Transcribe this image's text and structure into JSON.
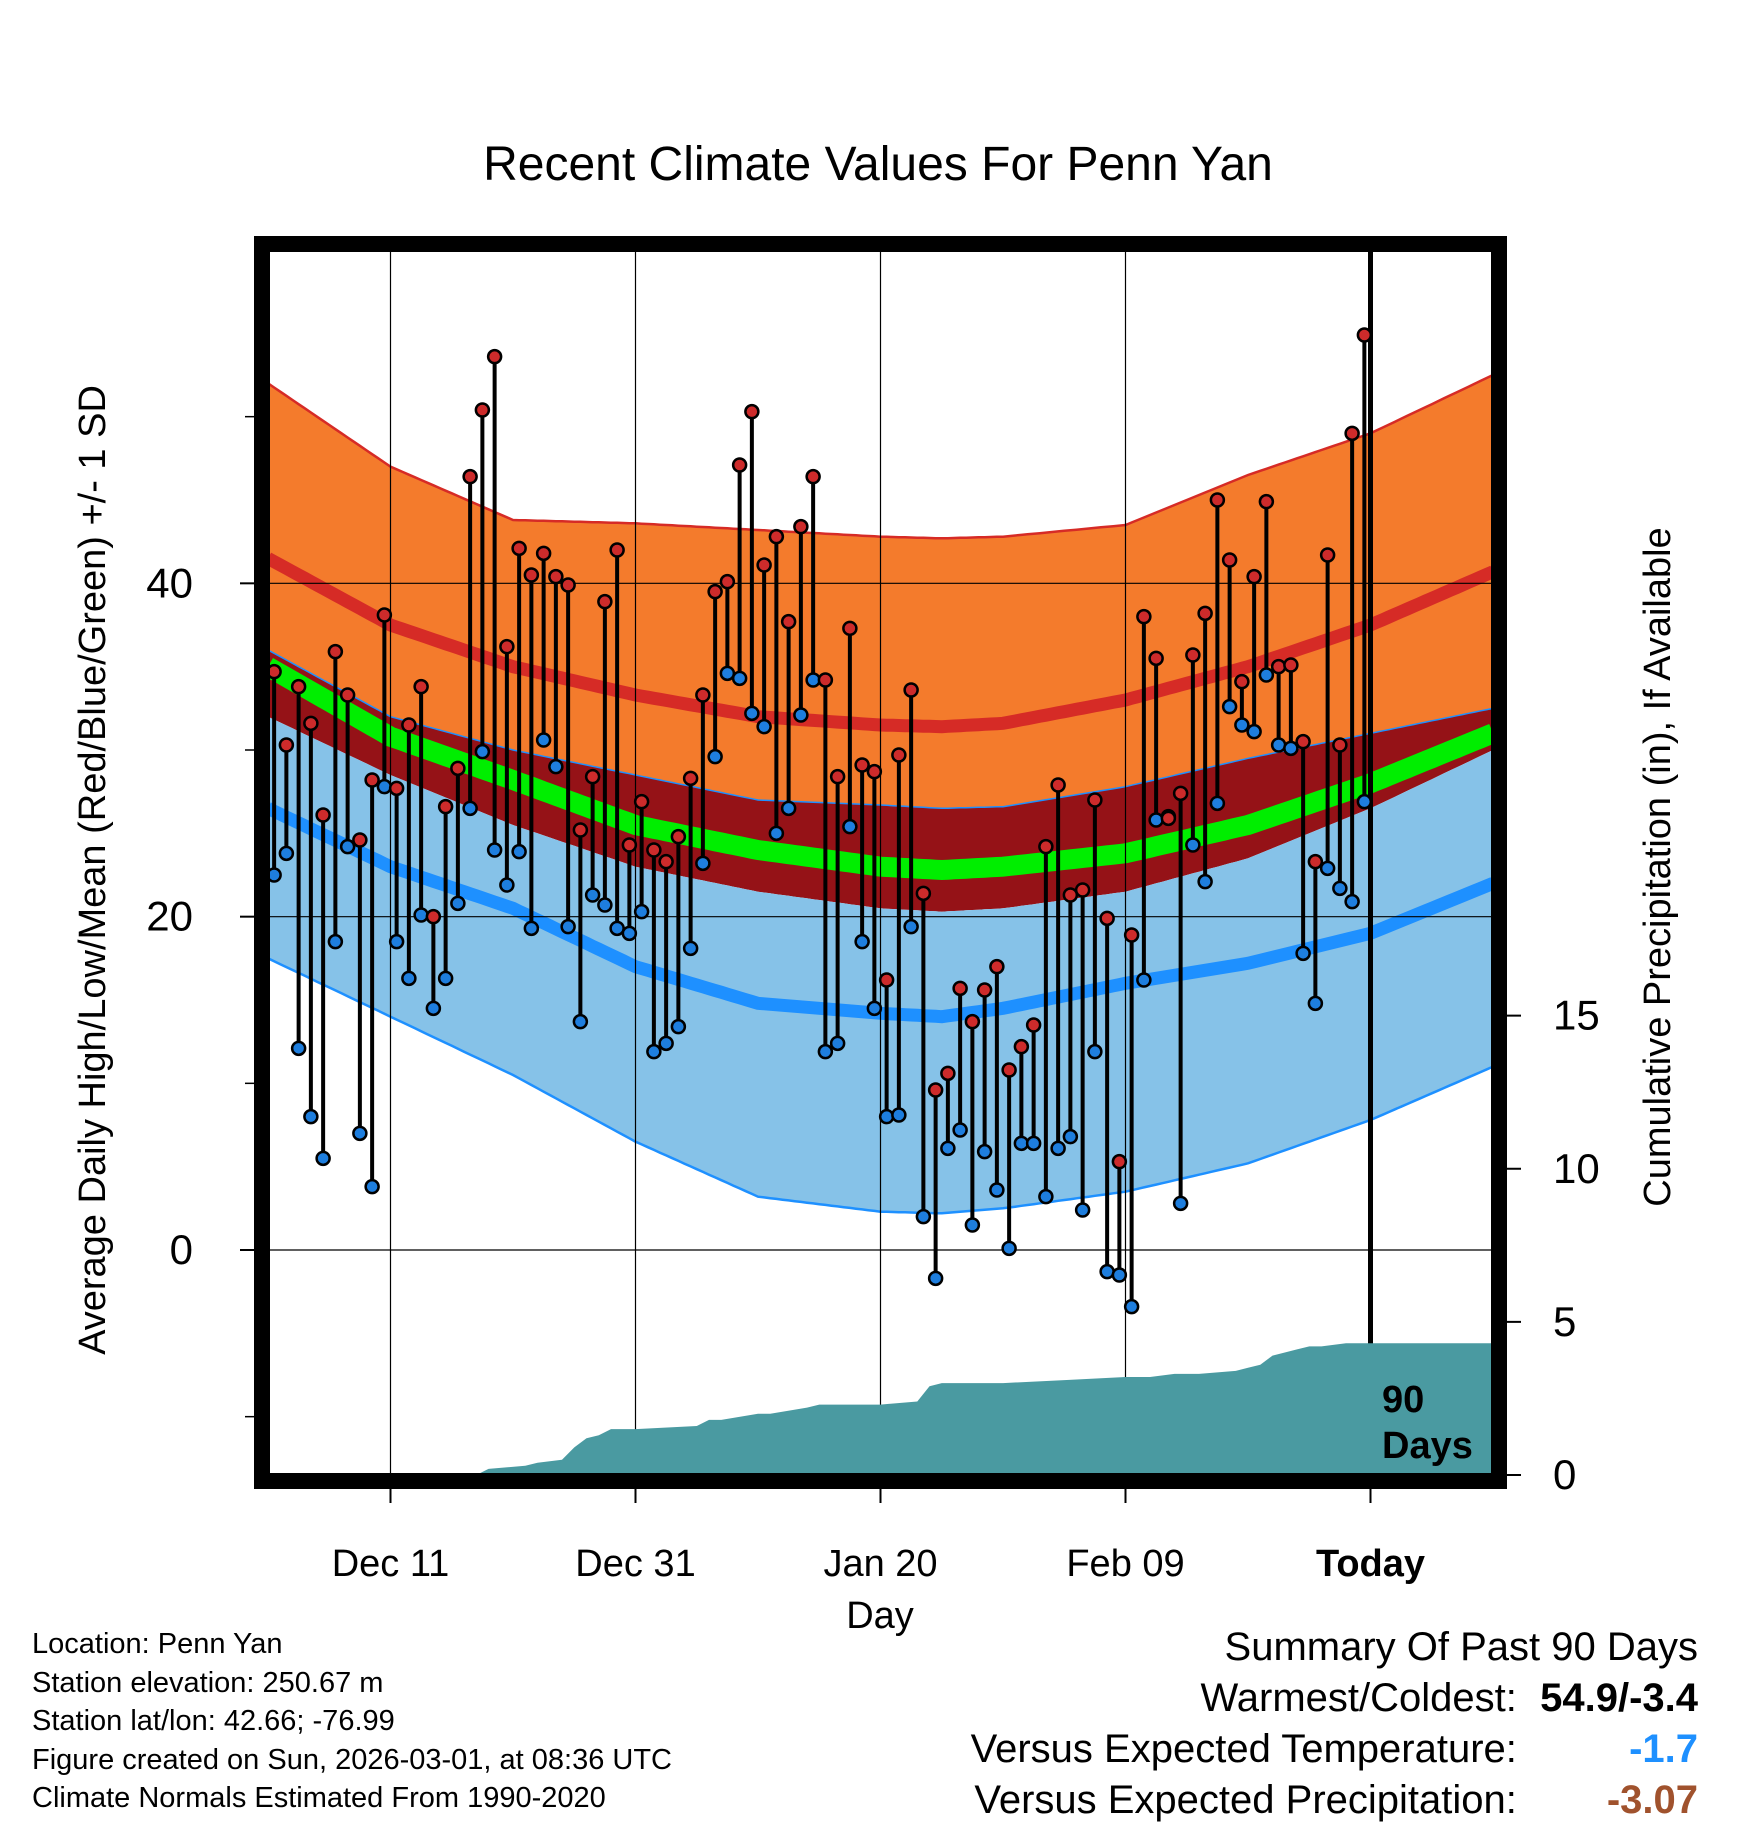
{
  "chart_data": {
    "type": "line",
    "title": "Recent Climate Values For Penn Yan",
    "xlabel": "Day",
    "ylabel": "Average Daily High/Low/Mean (Red/Blue/Green) +/- 1 SD",
    "y2label": "Cumulative Precipitation (in), If Available",
    "x_ticks": [
      {
        "day": 10,
        "label": "Dec 11"
      },
      {
        "day": 30,
        "label": "Dec 31"
      },
      {
        "day": 50,
        "label": "Jan 20"
      },
      {
        "day": 70,
        "label": "Feb 09"
      },
      {
        "day": 90,
        "label": "Today"
      }
    ],
    "xlim": [
      0,
      100
    ],
    "ylim": [
      -13.5,
      60
    ],
    "y_ticks": [
      0,
      20,
      40
    ],
    "y2lim": [
      0,
      40
    ],
    "y2_ticks": [
      0,
      5,
      10,
      15
    ],
    "today_day": 90,
    "today_label_line1": "90",
    "today_label_line2": "Days",
    "daily_temps": {
      "highs": [
        34.7,
        30.3,
        33.8,
        31.6,
        26.1,
        35.9,
        33.3,
        24.6,
        28.2,
        38.1,
        27.7,
        31.5,
        33.8,
        20.0,
        26.6,
        28.9,
        46.4,
        50.4,
        53.6,
        36.2,
        42.1,
        40.5,
        41.8,
        40.4,
        39.9,
        25.2,
        28.4,
        38.9,
        42.0,
        24.3,
        26.9,
        24.0,
        23.3,
        24.8,
        28.3,
        33.3,
        39.5,
        40.1,
        47.1,
        50.3,
        41.1,
        42.8,
        37.7,
        43.4,
        46.4,
        34.2,
        28.4,
        37.3,
        29.1,
        28.7,
        16.2,
        29.7,
        33.6,
        21.4,
        9.6,
        10.6,
        15.7,
        13.7,
        15.6,
        17.0,
        10.8,
        12.2,
        13.5,
        24.2,
        27.9,
        21.3,
        21.6,
        27.0,
        19.9,
        5.3,
        18.9,
        38.0,
        35.5,
        25.9,
        27.4,
        35.7,
        38.2,
        45.0,
        41.4,
        34.1,
        40.4,
        44.9,
        35.0,
        35.1,
        30.5,
        23.3,
        41.7,
        30.3,
        49.0,
        54.9
      ],
      "lows": [
        22.5,
        23.8,
        12.1,
        8.0,
        5.5,
        18.5,
        24.2,
        7.0,
        3.8,
        27.8,
        18.5,
        16.3,
        20.1,
        14.5,
        16.3,
        20.8,
        26.5,
        29.9,
        24.0,
        21.9,
        23.9,
        19.3,
        30.6,
        29.0,
        19.4,
        13.7,
        21.3,
        20.7,
        19.3,
        19.0,
        20.3,
        11.9,
        12.4,
        13.4,
        18.1,
        23.2,
        29.6,
        34.6,
        34.3,
        32.2,
        31.4,
        25.0,
        26.5,
        32.1,
        34.2,
        11.9,
        12.4,
        25.4,
        18.5,
        14.5,
        8.0,
        8.1,
        19.4,
        2.0,
        -1.7,
        6.1,
        7.2,
        1.5,
        5.9,
        3.6,
        0.1,
        6.4,
        6.4,
        3.2,
        6.1,
        6.8,
        2.4,
        11.9,
        -1.3,
        -1.5,
        -3.4,
        16.2,
        25.8,
        26.0,
        2.8,
        24.3,
        22.1,
        26.8,
        32.6,
        31.5,
        31.1,
        34.5,
        30.3,
        30.1,
        17.8,
        14.8,
        22.9,
        21.7,
        20.9,
        26.9
      ]
    },
    "normals": {
      "days": [
        0,
        10,
        20,
        30,
        40,
        50,
        55,
        60,
        70,
        80,
        90,
        100
      ],
      "high_plus_sd": [
        52.0,
        47.0,
        43.8,
        43.6,
        43.2,
        42.8,
        42.7,
        42.8,
        43.5,
        46.5,
        49.0,
        52.5
      ],
      "high": [
        41.5,
        37.5,
        35.0,
        33.3,
        32.0,
        31.5,
        31.4,
        31.6,
        33.0,
        35.0,
        37.5,
        40.7
      ],
      "high_minus_sd": [
        36.0,
        32.0,
        30.0,
        28.5,
        27.0,
        26.7,
        26.5,
        26.6,
        27.8,
        29.5,
        31.0,
        32.5
      ],
      "mean": [
        35.0,
        30.8,
        28.2,
        25.5,
        24.0,
        23.0,
        22.8,
        23.0,
        23.8,
        25.5,
        28.0,
        31.0
      ],
      "low_plus_sd": [
        32.0,
        28.5,
        25.5,
        23.0,
        21.5,
        20.5,
        20.3,
        20.5,
        21.5,
        23.5,
        26.5,
        30.0
      ],
      "low": [
        26.5,
        23.0,
        20.5,
        17.0,
        14.8,
        14.2,
        14.0,
        14.5,
        16.0,
        17.2,
        19.0,
        22.0
      ],
      "low_minus_sd": [
        17.5,
        14.0,
        10.5,
        6.5,
        3.2,
        2.3,
        2.2,
        2.5,
        3.5,
        5.2,
        7.8,
        11.0
      ]
    },
    "cumulative_precip": {
      "days": [
        0,
        17,
        18,
        21,
        22,
        24,
        25,
        26,
        27,
        28,
        30,
        35,
        36,
        37,
        40,
        41,
        44,
        45,
        46,
        48,
        50,
        53,
        54,
        55,
        60,
        65,
        70,
        71,
        72,
        74,
        76,
        79,
        80,
        81,
        82,
        83,
        84,
        85,
        86,
        88,
        90,
        93,
        100
      ],
      "values": [
        0,
        0,
        0.2,
        0.3,
        0.4,
        0.5,
        0.9,
        1.2,
        1.3,
        1.5,
        1.5,
        1.6,
        1.8,
        1.8,
        2.0,
        2.0,
        2.2,
        2.3,
        2.3,
        2.3,
        2.3,
        2.4,
        2.9,
        3.0,
        3.0,
        3.1,
        3.2,
        3.2,
        3.2,
        3.3,
        3.3,
        3.4,
        3.5,
        3.6,
        3.9,
        4.0,
        4.1,
        4.2,
        4.2,
        4.3,
        4.3,
        4.3,
        4.3
      ]
    },
    "colors": {
      "high_band": "#f47b2c",
      "high_band_edge": "#d62b26",
      "high_line": "#d62b26",
      "mid_band": "#951217",
      "mean_line": "#00ee00",
      "low_band": "#86c2e8",
      "low_band_edge": "#1e90ff",
      "low_line": "#1e90ff",
      "precip_fill": "#4a9aa1",
      "high_dot": "#cd2b2b",
      "low_dot": "#1e7ede"
    }
  },
  "info": {
    "location": "Location: Penn Yan",
    "elevation": "Station elevation: 250.67 m",
    "latlon": "Station lat/lon: 42.66; -76.99",
    "created": "Figure created on Sun, 2026-03-01, at 08:36 UTC",
    "normals": "Climate Normals Estimated From 1990-2020"
  },
  "summary": {
    "title": "Summary Of Past 90 Days",
    "warm_cold_label": "Warmest/Coldest:",
    "warm_cold_value": "54.9/-3.4",
    "temp_label": "Versus Expected Temperature:",
    "temp_value": "-1.7",
    "precip_label": "Versus Expected Precipitation:",
    "precip_value": "-3.07"
  }
}
